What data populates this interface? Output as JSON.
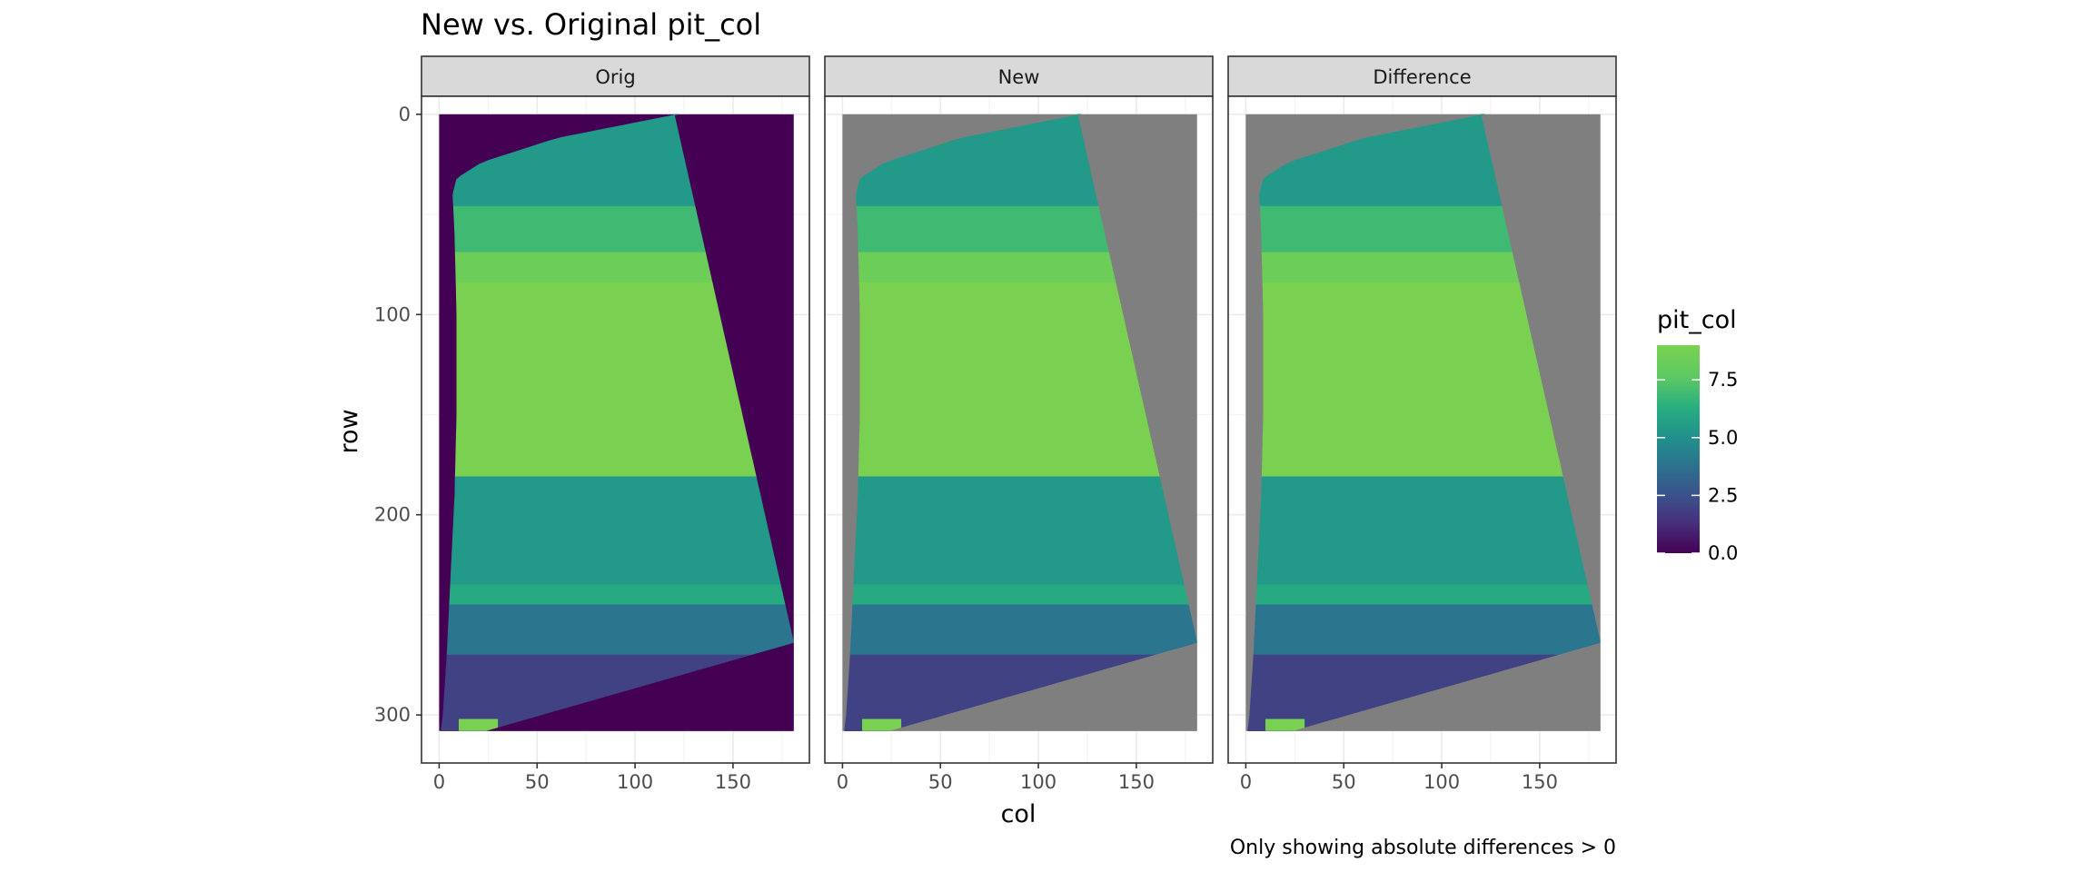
{
  "chart_data": {
    "type": "heatmap",
    "title": "New vs. Original pit_col",
    "xlabel": "col",
    "ylabel": "row",
    "caption": "Only showing absolute differences > 0",
    "xlim": [
      -9,
      189
    ],
    "ylim": [
      -9,
      324
    ],
    "y_reversed": true,
    "x_ticks": [
      "0",
      "50",
      "100",
      "150"
    ],
    "x_tick_values": [
      0,
      50,
      100,
      150
    ],
    "y_ticks": [
      "0",
      "100",
      "200",
      "300"
    ],
    "y_tick_values": [
      0,
      100,
      200,
      300
    ],
    "grid": true,
    "na_color": "#7f7f7f",
    "legend": {
      "title": "pit_col",
      "placement": "right",
      "range": [
        0,
        9
      ],
      "ticks": [
        "0.0",
        "2.5",
        "5.0",
        "7.5"
      ],
      "tick_values": [
        0,
        2.5,
        5,
        7.5
      ],
      "colors": [
        "#440154",
        "#472d7b",
        "#3b528b",
        "#2c728e",
        "#21918c",
        "#28ae80",
        "#5ec962",
        "#7ad151"
      ]
    },
    "panels": [
      {
        "strip": "Orig",
        "outside_value": 0
      },
      {
        "strip": "New",
        "outside_value": null
      },
      {
        "strip": "Difference",
        "outside_value": null
      }
    ],
    "region": {
      "grid_extent": {
        "cols": [
          0,
          181
        ],
        "rows": [
          0,
          308
        ]
      },
      "right_boundary": [
        {
          "row": 0,
          "col": 120
        },
        {
          "row": 264,
          "col": 181
        }
      ],
      "bottom_boundary": [
        {
          "col": 181,
          "row": 264
        },
        {
          "col": 24,
          "row": 308
        }
      ],
      "left_boundary": [
        {
          "row": 0,
          "col": 122
        },
        {
          "row": 12,
          "col": 60
        },
        {
          "row": 24,
          "col": 22
        },
        {
          "row": 32,
          "col": 9
        },
        {
          "row": 40,
          "col": 7
        },
        {
          "row": 60,
          "col": 8
        },
        {
          "row": 100,
          "col": 9
        },
        {
          "row": 150,
          "col": 9
        },
        {
          "row": 190,
          "col": 8
        },
        {
          "row": 230,
          "col": 6
        },
        {
          "row": 270,
          "col": 4
        },
        {
          "row": 300,
          "col": 2
        },
        {
          "row": 308,
          "col": 1
        }
      ],
      "bands": [
        {
          "row_start": 0,
          "row_end": 46,
          "value": 5.5
        },
        {
          "row_start": 46,
          "row_end": 69,
          "value": 7.0
        },
        {
          "row_start": 69,
          "row_end": 84,
          "value": 8.4
        },
        {
          "row_start": 84,
          "row_end": 181,
          "value": 9.0
        },
        {
          "row_start": 181,
          "row_end": 235,
          "value": 5.5
        },
        {
          "row_start": 235,
          "row_end": 245,
          "value": 6.2
        },
        {
          "row_start": 245,
          "row_end": 270,
          "value": 4.0
        },
        {
          "row_start": 270,
          "row_end": 308,
          "value": 2.0
        }
      ],
      "low_patch": {
        "row_start": 302,
        "row_end": 308,
        "col_start": 10,
        "col_end": 30,
        "value": 9.0
      }
    }
  }
}
